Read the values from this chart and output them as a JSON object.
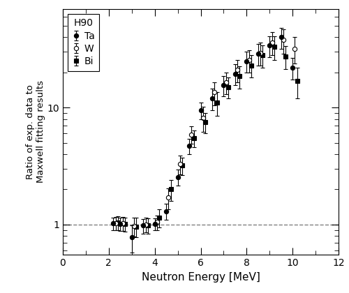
{
  "title": "",
  "xlabel": "Neutron Energy [MeV]",
  "ylabel": "Ratio of exp. data to\nMaxwell fitting results",
  "xlim": [
    0,
    12
  ],
  "ylim_log": [
    0.55,
    70
  ],
  "legend_title": "H90",
  "legend_entries": [
    "Ta",
    "W",
    "Bi"
  ],
  "background_color": "#ffffff",
  "Ta_x": [
    2.2,
    2.5,
    3.0,
    3.5,
    4.0,
    4.5,
    5.0,
    5.5,
    6.0,
    6.5,
    7.0,
    7.5,
    8.0,
    8.5,
    9.0,
    9.5,
    10.0
  ],
  "Ta_y": [
    1.02,
    1.01,
    0.78,
    0.98,
    1.01,
    1.3,
    2.55,
    4.7,
    9.5,
    12.0,
    15.5,
    19.5,
    25.0,
    29.0,
    34.0,
    40.0,
    22.0
  ],
  "Ta_yerr": [
    0.12,
    0.13,
    0.2,
    0.14,
    0.12,
    0.2,
    0.4,
    0.7,
    1.5,
    2.5,
    3.0,
    4.0,
    5.0,
    6.0,
    7.0,
    8.0,
    4.5
  ],
  "W_x": [
    2.3,
    2.6,
    3.1,
    3.6,
    4.1,
    4.6,
    5.1,
    5.6,
    6.1,
    6.6,
    7.1,
    7.6,
    8.1,
    8.6,
    9.1,
    9.6,
    10.1
  ],
  "W_y": [
    1.03,
    1.02,
    0.97,
    1.0,
    1.05,
    1.7,
    3.3,
    5.9,
    8.2,
    13.5,
    16.5,
    21.0,
    25.5,
    29.5,
    36.0,
    38.0,
    32.0
  ],
  "W_yerr": [
    0.13,
    0.14,
    0.18,
    0.14,
    0.15,
    0.35,
    0.6,
    1.0,
    2.0,
    3.0,
    3.5,
    4.5,
    5.5,
    6.5,
    8.0,
    9.0,
    8.0
  ],
  "Bi_x": [
    2.4,
    2.7,
    3.2,
    3.7,
    4.2,
    4.7,
    5.2,
    5.7,
    6.2,
    6.7,
    7.2,
    7.7,
    8.2,
    8.7,
    9.2,
    9.7,
    10.2
  ],
  "Bi_y": [
    1.04,
    1.01,
    0.96,
    0.98,
    1.15,
    2.0,
    3.2,
    5.5,
    7.5,
    11.0,
    15.0,
    18.5,
    23.0,
    28.0,
    33.0,
    27.5,
    17.0
  ],
  "Bi_yerr": [
    0.14,
    0.14,
    0.18,
    0.15,
    0.2,
    0.4,
    0.55,
    0.9,
    1.5,
    2.5,
    3.0,
    4.0,
    5.0,
    6.0,
    7.5,
    6.0,
    5.0
  ],
  "dashed_y": 1.0,
  "marker_size": 4.5,
  "capsize": 2,
  "linewidth_err": 0.8,
  "figsize": [
    5.0,
    4.2
  ],
  "dpi": 100
}
